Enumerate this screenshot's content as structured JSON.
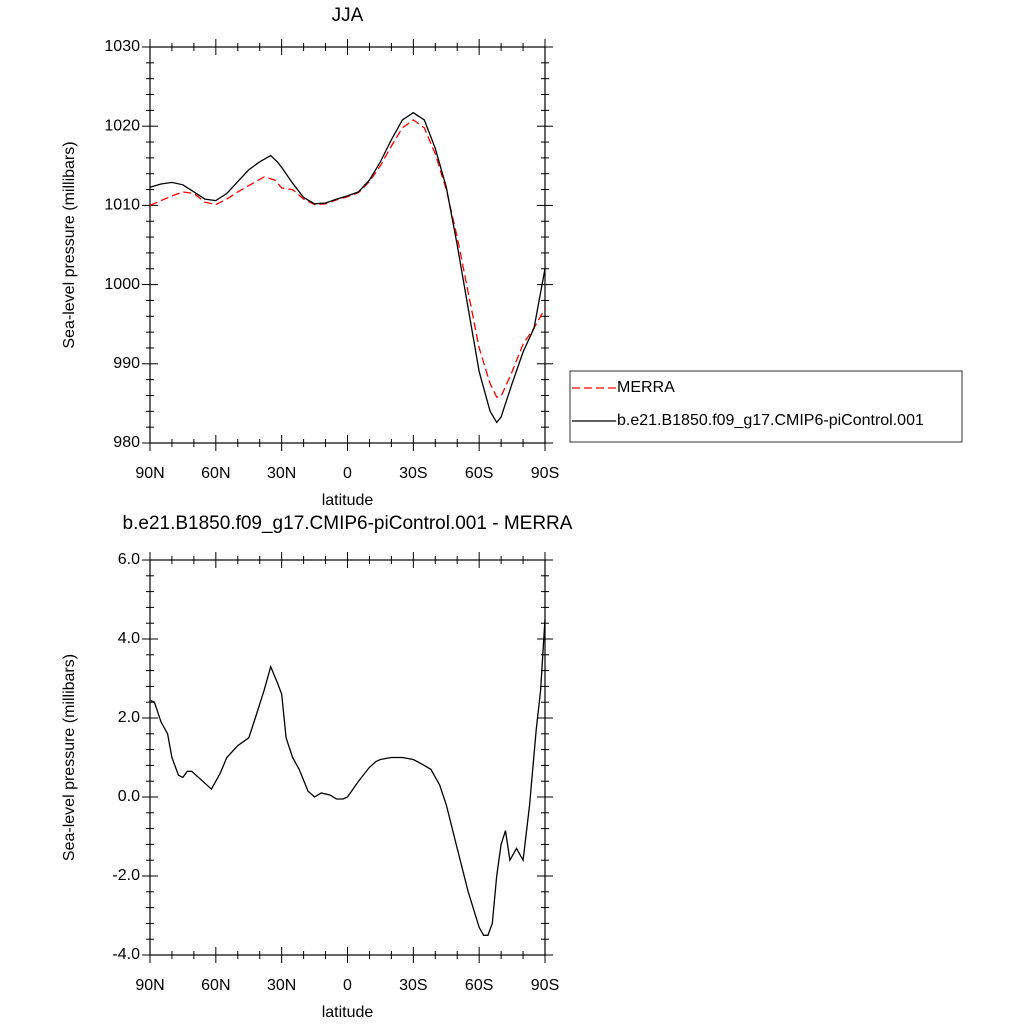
{
  "chart_data": [
    {
      "type": "line",
      "title": "JJA",
      "xlabel": "latitude",
      "ylabel": "Sea-level pressure (millibars)",
      "xlim": [
        90,
        -90
      ],
      "xticks": [
        {
          "value": 90,
          "label": "90N"
        },
        {
          "value": 60,
          "label": "60N"
        },
        {
          "value": 30,
          "label": "30N"
        },
        0,
        {
          "value": -30,
          "label": "30S"
        },
        {
          "value": -60,
          "label": "60S"
        },
        {
          "value": -90,
          "label": "90S"
        }
      ],
      "ylim": [
        980,
        1030
      ],
      "yticks": [
        980,
        990,
        1000,
        1010,
        1020,
        1030
      ],
      "legend": "right",
      "series": [
        {
          "name": "MERRA",
          "color": "#ff0000",
          "line_style": "dashed",
          "x": [
            90,
            85,
            80,
            75,
            70,
            65,
            60,
            55,
            50,
            45,
            38,
            33,
            30,
            25,
            20,
            15,
            10,
            5,
            0,
            -5,
            -10,
            -15,
            -20,
            -25,
            -30,
            -35,
            -40,
            -45,
            -50,
            -55,
            -60,
            -65,
            -68,
            -70,
            -75,
            -80,
            -85,
            -90
          ],
          "values": [
            1010,
            1010.6,
            1011.2,
            1011.7,
            1011.5,
            1010.4,
            1010.1,
            1010.8,
            1011.7,
            1012.5,
            1013.6,
            1013.2,
            1012.2,
            1012,
            1010.8,
            1010.1,
            1010.2,
            1010.7,
            1011.1,
            1011.6,
            1013,
            1015,
            1017.5,
            1019.8,
            1020.8,
            1019.8,
            1016.5,
            1012,
            1006,
            999,
            992,
            987.5,
            985.8,
            985.9,
            989,
            992.5,
            994.5,
            997
          ]
        },
        {
          "name": "b.e21.B1850.f09_g17.CMIP6-piControl.001",
          "color": "#000000",
          "line_style": "solid",
          "x": [
            90,
            85,
            80,
            75,
            70,
            65,
            60,
            55,
            50,
            45,
            40,
            35,
            32,
            30,
            25,
            20,
            15,
            10,
            5,
            0,
            -5,
            -10,
            -15,
            -20,
            -25,
            -30,
            -35,
            -40,
            -45,
            -50,
            -55,
            -60,
            -65,
            -68,
            -70,
            -75,
            -80,
            -85,
            -90
          ],
          "values": [
            1012.3,
            1012.7,
            1012.9,
            1012.6,
            1011.7,
            1010.8,
            1010.6,
            1011.5,
            1013,
            1014.5,
            1015.5,
            1016.3,
            1015.5,
            1014.8,
            1012.8,
            1011,
            1010.2,
            1010.3,
            1010.8,
            1011.2,
            1011.7,
            1013.2,
            1015.5,
            1018.3,
            1020.8,
            1021.7,
            1020.8,
            1017.2,
            1012.3,
            1005,
            997,
            989,
            984,
            982.6,
            983.3,
            987.5,
            991.5,
            994.5,
            1002
          ]
        }
      ]
    },
    {
      "type": "line",
      "title": "b.e21.B1850.f09_g17.CMIP6-piControl.001 - MERRA",
      "xlabel": "latitude",
      "ylabel": "Sea-level pressure (millibars)",
      "xlim": [
        90,
        -90
      ],
      "xticks": [
        {
          "value": 90,
          "label": "90N"
        },
        {
          "value": 60,
          "label": "60N"
        },
        {
          "value": 30,
          "label": "30N"
        },
        0,
        {
          "value": -30,
          "label": "30S"
        },
        {
          "value": -60,
          "label": "60S"
        },
        {
          "value": -90,
          "label": "90S"
        }
      ],
      "ylim": [
        -4,
        6
      ],
      "yticks": [
        {
          "value": -4,
          "label": "-4.0"
        },
        {
          "value": -2,
          "label": "-2.0"
        },
        {
          "value": 0,
          "label": "0.0"
        },
        {
          "value": 2,
          "label": "2.0"
        },
        {
          "value": 4,
          "label": "4.0"
        },
        {
          "value": 6,
          "label": "6.0"
        }
      ],
      "series": [
        {
          "color": "#000000",
          "line_style": "solid",
          "x": [
            90,
            88,
            85,
            82,
            80,
            77,
            75,
            73,
            71,
            65,
            62,
            58,
            55,
            50,
            45,
            42,
            38,
            35,
            32,
            30,
            28,
            25,
            22,
            18,
            15,
            12,
            8,
            5,
            2,
            0,
            -5,
            -10,
            -13,
            -15,
            -20,
            -25,
            -30,
            -35,
            -38,
            -42,
            -45,
            -50,
            -55,
            -60,
            -62,
            -64,
            -66,
            -68,
            -70,
            -72,
            -74,
            -77,
            -80,
            -83,
            -86,
            -88,
            -90
          ],
          "values": [
            2.45,
            2.4,
            1.9,
            1.6,
            1.0,
            0.55,
            0.5,
            0.65,
            0.65,
            0.35,
            0.2,
            0.6,
            1.0,
            1.3,
            1.5,
            2.0,
            2.7,
            3.3,
            2.9,
            2.6,
            1.5,
            1.0,
            0.7,
            0.15,
            0.0,
            0.1,
            0.05,
            -0.05,
            -0.05,
            0.0,
            0.4,
            0.75,
            0.9,
            0.95,
            1.0,
            1.0,
            0.95,
            0.8,
            0.7,
            0.3,
            -0.2,
            -1.3,
            -2.4,
            -3.3,
            -3.5,
            -3.5,
            -3.2,
            -2.0,
            -1.2,
            -0.85,
            -1.6,
            -1.3,
            -1.6,
            -0.2,
            1.7,
            2.7,
            4.5
          ]
        }
      ]
    }
  ]
}
